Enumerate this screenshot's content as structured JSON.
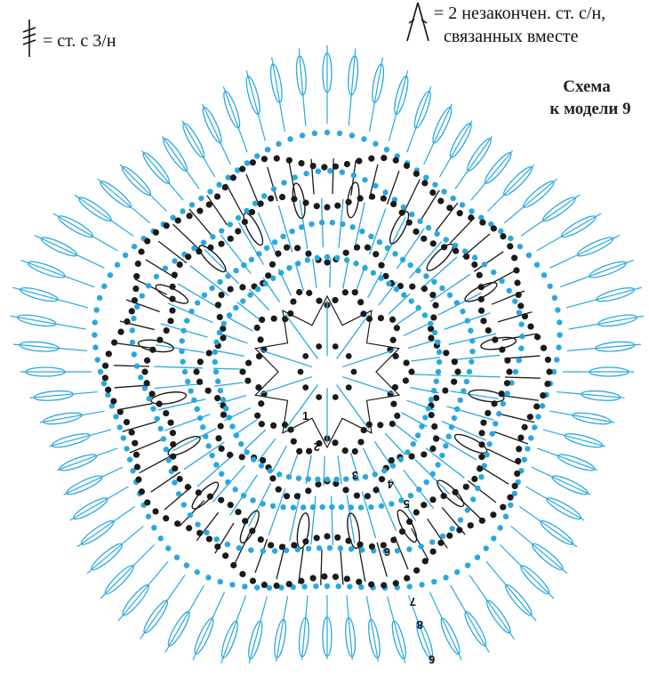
{
  "legend": {
    "tr3_label": "= ст. с 3/н",
    "cluster_line1": "= 2 незакончен. ст. с/н,",
    "cluster_line2": "связанных вместе"
  },
  "title": {
    "line1": "Схема",
    "line2": "к модели 9"
  },
  "row_labels": [
    "1",
    "2",
    "3",
    "4",
    "5",
    "6",
    "7",
    "8",
    "9"
  ],
  "colors": {
    "black": "#1a1a1a",
    "blue": "#29a8df",
    "background": "#ffffff"
  },
  "icons": {
    "legend_tr3": "triple-crochet-symbol-icon",
    "legend_cluster": "cluster-symbol-icon"
  }
}
